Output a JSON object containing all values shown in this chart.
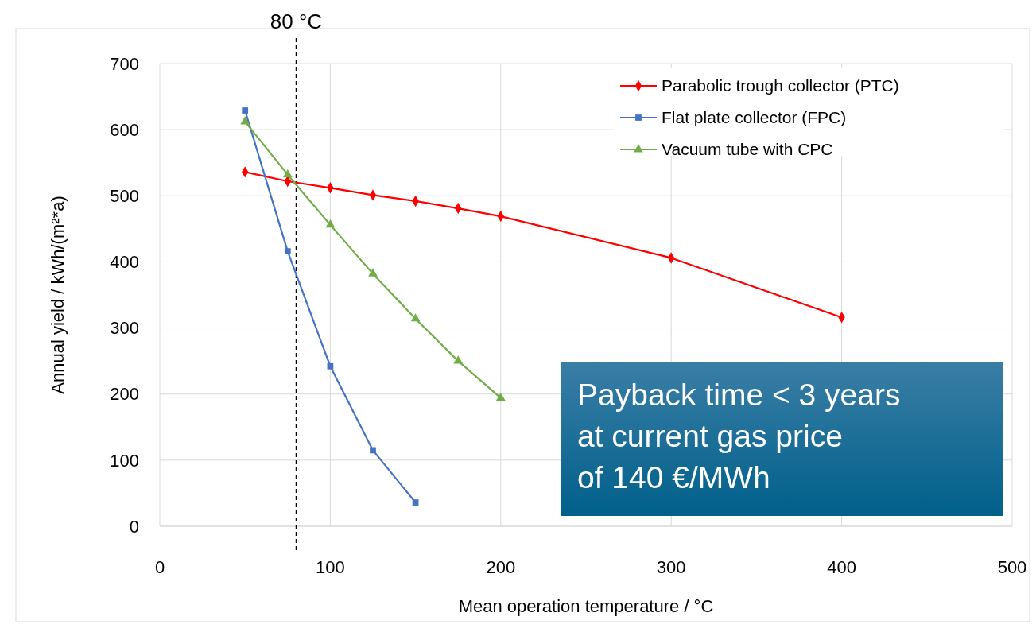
{
  "chart_data": {
    "type": "line",
    "xlabel": "Mean operation temperature / °C",
    "ylabel": "Annual yield / kWh/(m²*a)",
    "xlim": [
      0,
      500
    ],
    "xticks": [
      0,
      100,
      200,
      300,
      400,
      500
    ],
    "ylim": [
      0,
      700
    ],
    "yticks": [
      0,
      100,
      200,
      300,
      400,
      500,
      600,
      700
    ],
    "grid": true,
    "legend": "top right",
    "series": [
      {
        "name": "Parabolic trough collector (PTC)",
        "color": "#ff0000",
        "marker": "diamond",
        "x": [
          50,
          75,
          100,
          125,
          150,
          175,
          200,
          300,
          400
        ],
        "values": [
          536,
          522,
          512,
          501,
          492,
          481,
          469,
          406,
          316
        ]
      },
      {
        "name": "Flat plate collector (FPC)",
        "color": "#4472c4",
        "marker": "square",
        "x": [
          50,
          75,
          100,
          125,
          150
        ],
        "values": [
          629,
          416,
          242,
          115,
          36
        ]
      },
      {
        "name": "Vacuum tube with CPC",
        "color": "#70ad47",
        "marker": "triangle",
        "x": [
          50,
          75,
          100,
          125,
          150,
          175,
          200
        ],
        "values": [
          612,
          532,
          456,
          382,
          314,
          250,
          194
        ]
      }
    ],
    "ref_lines": [
      {
        "axis": "x",
        "value": 80,
        "label": "80 °C",
        "color": "#000000",
        "line_style": "dashed"
      }
    ],
    "annotations": [
      "Payback time < 3 years at current gas price of 140 €/MWh"
    ]
  }
}
